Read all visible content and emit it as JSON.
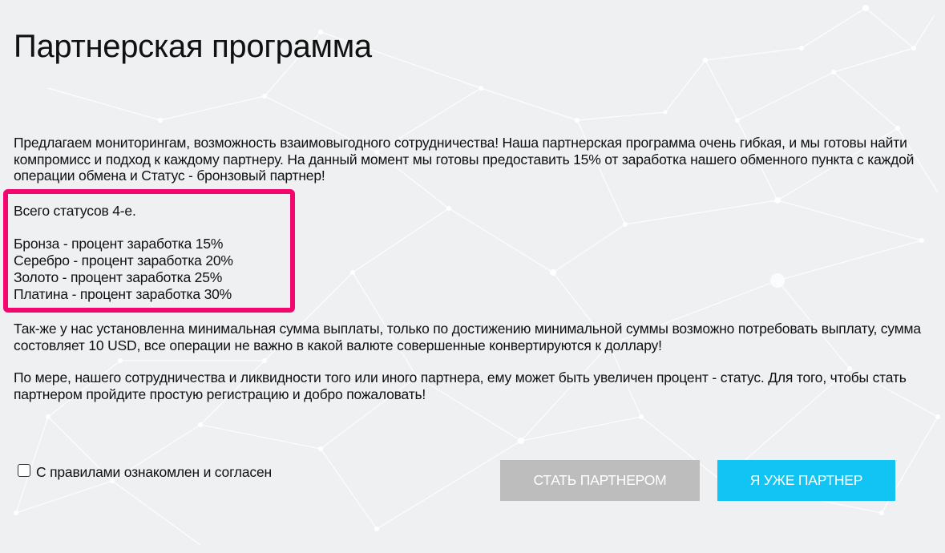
{
  "page": {
    "title": "Партнерская программа"
  },
  "intro": {
    "text": "Предлагаем мониторингам, возможность взаимовыгодного сотрудничества! Наша партнерская программа очень гибкая, и мы готовы найти компромисс и подход к каждому партнеру. На данный момент мы готовы предоставить 15% от заработка нашего обменного пункта с каждой операции обмена и Статус - бронзовый партнер!"
  },
  "statuses": {
    "heading": "Всего статусов 4-е.",
    "items": [
      "Бронза - процент заработка 15%",
      "Серебро - процент заработка 20%",
      "Золото - процент заработка 25%",
      "Платина - процент заработка 30%"
    ],
    "highlight_color": "#f3076f"
  },
  "payout": {
    "text": "Так-же у нас установленна минимальная сумма выплаты, только по достижению минимальной суммы возможно потребовать выплату, сумма состовляет 10 USD, все операции не важно в какой валюте совершенные конвертируются к доллару!"
  },
  "growth": {
    "text": "По мере, нашего сотрудничества и ликвидности того или иного партнера, ему может быть увеличен процент - статус. Для того, чтобы стать партнером пройдите простую регистрацию и добро пожаловать!"
  },
  "agreement": {
    "label": "С правилами ознакомлен и согласен",
    "checked": false
  },
  "buttons": {
    "become_partner": "СТАТЬ ПАРТНЕРОМ",
    "already_partner": "Я УЖЕ ПАРТНЕР",
    "become_color": "#bdbdbd",
    "already_color": "#12c4f4"
  }
}
